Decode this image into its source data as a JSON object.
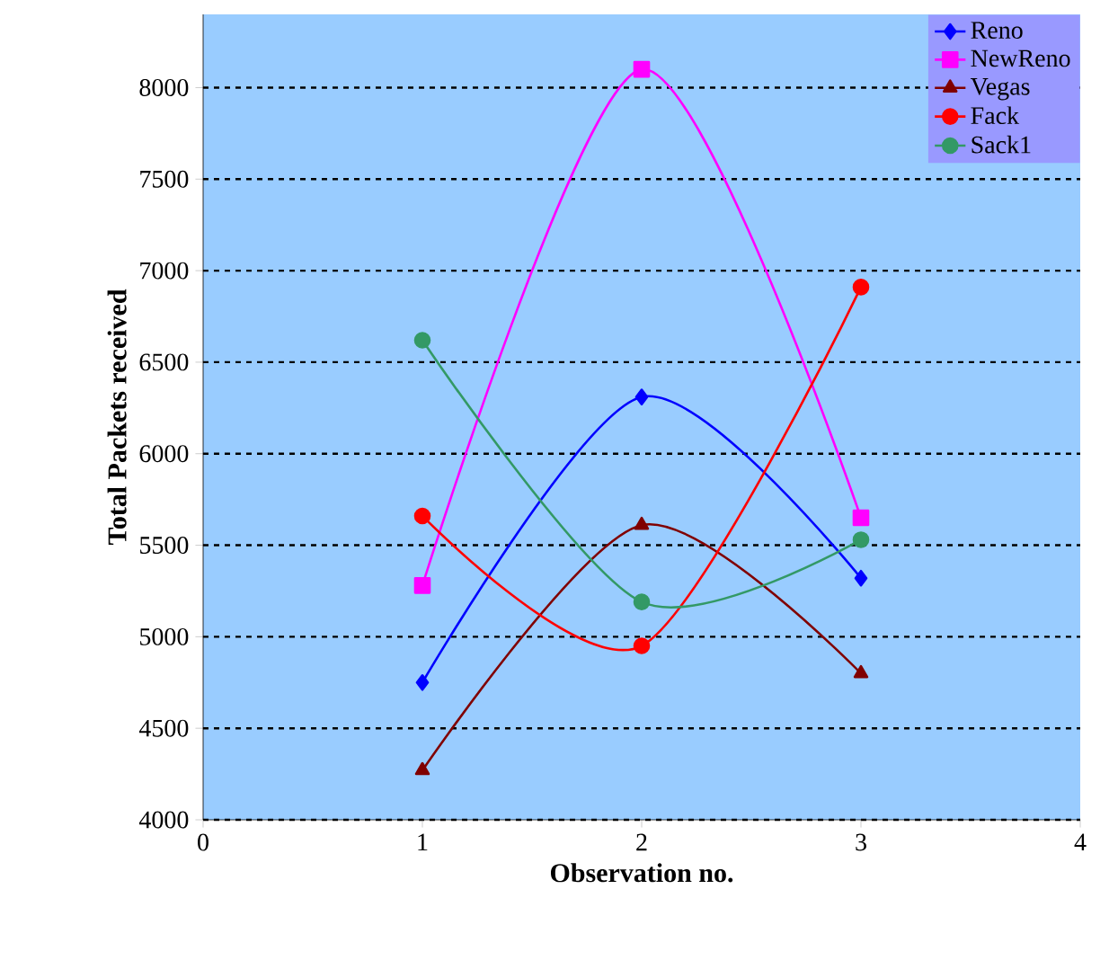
{
  "chart_data": {
    "type": "line",
    "xlabel": "Observation no.",
    "ylabel": "Total Packets received",
    "x": [
      1,
      2,
      3
    ],
    "xlim": [
      0,
      4
    ],
    "xticks": [
      0,
      1,
      2,
      3,
      4
    ],
    "ylim": [
      4000,
      8400
    ],
    "yticks": [
      4000,
      4500,
      5000,
      5500,
      6000,
      6500,
      7000,
      7500,
      8000
    ],
    "grid": "y",
    "legend": "top right",
    "series": [
      {
        "name": "Reno",
        "color": "#0000ff",
        "marker": "diamond",
        "values": [
          4750,
          6310,
          5320
        ]
      },
      {
        "name": "NewReno",
        "color": "#ff00ff",
        "marker": "square",
        "values": [
          5280,
          8100,
          5650
        ]
      },
      {
        "name": "Vegas",
        "color": "#800000",
        "marker": "triangle",
        "values": [
          4270,
          5610,
          4800
        ]
      },
      {
        "name": "Fack",
        "color": "#ff0000",
        "marker": "circle",
        "values": [
          5660,
          4950,
          6910
        ]
      },
      {
        "name": "Sack1",
        "color": "#339966",
        "marker": "circle",
        "values": [
          6620,
          5190,
          5530
        ]
      }
    ]
  }
}
